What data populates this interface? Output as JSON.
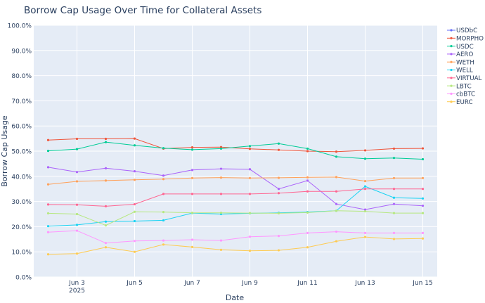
{
  "chart_data": {
    "type": "line",
    "title": "Borrow Cap Usage Over Time for Collateral Assets",
    "xlabel": "Date",
    "ylabel": "Borrow Cap Usage",
    "x": [
      "2025-06-02",
      "2025-06-03",
      "2025-06-04",
      "2025-06-05",
      "2025-06-06",
      "2025-06-07",
      "2025-06-08",
      "2025-06-09",
      "2025-06-10",
      "2025-06-11",
      "2025-06-12",
      "2025-06-13",
      "2025-06-14",
      "2025-06-15"
    ],
    "x_ticks": [
      {
        "date": "2025-06-03",
        "label": "Jun 3",
        "sublabel": "2025"
      },
      {
        "date": "2025-06-05",
        "label": "Jun 5",
        "sublabel": ""
      },
      {
        "date": "2025-06-07",
        "label": "Jun 7",
        "sublabel": ""
      },
      {
        "date": "2025-06-09",
        "label": "Jun 9",
        "sublabel": ""
      },
      {
        "date": "2025-06-11",
        "label": "Jun 11",
        "sublabel": ""
      },
      {
        "date": "2025-06-13",
        "label": "Jun 13",
        "sublabel": ""
      },
      {
        "date": "2025-06-15",
        "label": "Jun 15",
        "sublabel": ""
      }
    ],
    "x_range": [
      "2025-06-01T12:00",
      "2025-06-15T12:00"
    ],
    "ylim": [
      0,
      100
    ],
    "y_ticks": [
      0,
      10,
      20,
      30,
      40,
      50,
      60,
      70,
      80,
      90,
      100
    ],
    "y_tick_labels": [
      "0.0%",
      "10.0%",
      "20.0%",
      "30.0%",
      "40.0%",
      "50.0%",
      "60.0%",
      "70.0%",
      "80.0%",
      "90.0%",
      "100.0%"
    ],
    "grid": true,
    "legend_position": "right",
    "series": [
      {
        "name": "USDbC",
        "color": "#636efa",
        "values": [
          null,
          null,
          null,
          null,
          null,
          null,
          null,
          null,
          null,
          null,
          null,
          null,
          null,
          null
        ]
      },
      {
        "name": "MORPHO",
        "color": "#ef553b",
        "values": [
          54.4,
          54.9,
          54.9,
          55.0,
          51.0,
          51.5,
          51.6,
          50.9,
          50.5,
          50.0,
          49.8,
          50.3,
          51.0,
          51.1
        ]
      },
      {
        "name": "USDC",
        "color": "#00cc96",
        "values": [
          50.1,
          50.8,
          53.6,
          52.3,
          51.2,
          50.6,
          51.0,
          52.0,
          53.0,
          51.0,
          47.8,
          47.0,
          47.3,
          46.8
        ]
      },
      {
        "name": "AERO",
        "color": "#ab63fa",
        "values": [
          43.6,
          41.7,
          43.2,
          42.0,
          40.3,
          42.5,
          43.0,
          42.8,
          35.0,
          38.3,
          29.0,
          26.8,
          29.0,
          28.3
        ]
      },
      {
        "name": "WETH",
        "color": "#ffa15a",
        "values": [
          36.8,
          38.0,
          38.3,
          38.6,
          38.9,
          39.3,
          39.5,
          39.3,
          39.4,
          39.6,
          39.7,
          38.1,
          39.3,
          39.3
        ]
      },
      {
        "name": "WELL",
        "color": "#19d3f3",
        "values": [
          20.2,
          20.7,
          22.0,
          22.2,
          22.5,
          25.4,
          25.0,
          25.3,
          25.5,
          25.8,
          26.3,
          36.0,
          31.5,
          31.2
        ]
      },
      {
        "name": "VIRTUAL",
        "color": "#ff6692",
        "values": [
          28.8,
          28.7,
          28.1,
          28.9,
          33.0,
          33.0,
          33.0,
          33.0,
          33.3,
          34.0,
          34.0,
          35.0,
          35.0,
          35.0
        ]
      },
      {
        "name": "LBTC",
        "color": "#b6e880",
        "values": [
          25.3,
          25.0,
          20.5,
          25.9,
          25.8,
          25.5,
          25.5,
          25.4,
          25.3,
          25.6,
          26.3,
          26.1,
          25.4,
          25.4
        ]
      },
      {
        "name": "cbBTC",
        "color": "#ff97ff",
        "values": [
          17.8,
          18.4,
          13.5,
          14.3,
          14.5,
          14.8,
          14.5,
          16.0,
          16.3,
          17.5,
          18.0,
          17.5,
          17.5,
          17.5
        ]
      },
      {
        "name": "EURC",
        "color": "#fecb52",
        "values": [
          9.0,
          9.3,
          11.8,
          10.0,
          12.9,
          11.9,
          10.8,
          10.4,
          10.6,
          11.8,
          14.2,
          15.9,
          15.1,
          15.3
        ]
      }
    ]
  }
}
